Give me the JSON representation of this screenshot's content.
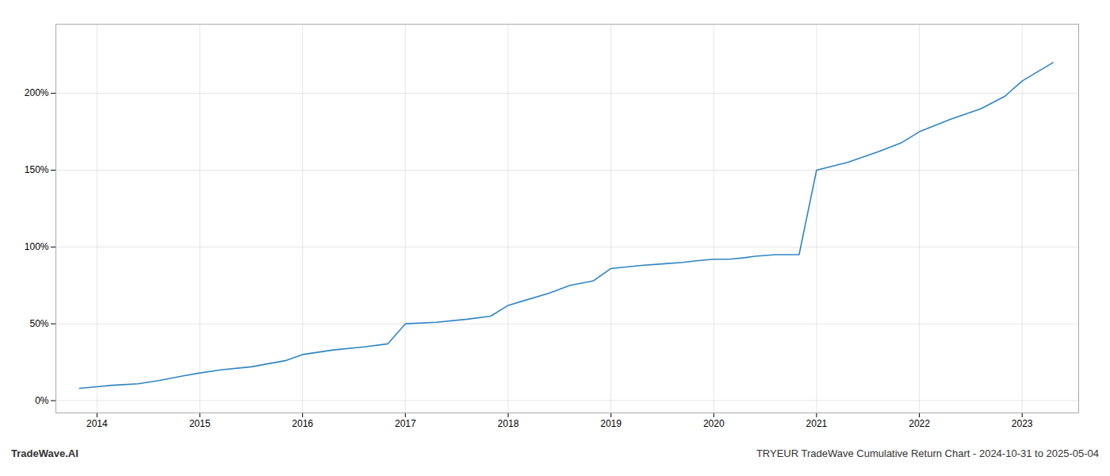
{
  "chart_data": {
    "type": "line",
    "x": [
      2013.83,
      2014.0,
      2014.15,
      2014.4,
      2014.6,
      2014.83,
      2015.0,
      2015.2,
      2015.5,
      2015.83,
      2016.0,
      2016.3,
      2016.6,
      2016.83,
      2017.0,
      2017.3,
      2017.6,
      2017.83,
      2018.0,
      2018.15,
      2018.4,
      2018.6,
      2018.83,
      2019.0,
      2019.3,
      2019.5,
      2019.7,
      2019.83,
      2020.0,
      2020.15,
      2020.3,
      2020.4,
      2020.6,
      2020.83,
      2021.0,
      2021.3,
      2021.6,
      2021.83,
      2022.0,
      2022.3,
      2022.6,
      2022.83,
      2023.0,
      2023.3
    ],
    "values": [
      8,
      9,
      10,
      11,
      13,
      16,
      18,
      20,
      22,
      26,
      30,
      33,
      35,
      37,
      50,
      51,
      53,
      55,
      62,
      65,
      70,
      75,
      78,
      86,
      88,
      89,
      90,
      91,
      92,
      92,
      93,
      94,
      95,
      95,
      150,
      155,
      162,
      168,
      175,
      183,
      190,
      198,
      208,
      220
    ],
    "color": "#2e86c1",
    "xlim": [
      2013.6,
      2023.55
    ],
    "xticks": [
      2014,
      2015,
      2016,
      2017,
      2018,
      2019,
      2020,
      2021,
      2022,
      2023
    ],
    "ylim": [
      -8,
      245
    ],
    "yticks": [
      {
        "value": 0,
        "label": "0%"
      },
      {
        "value": 50,
        "label": "50%"
      },
      {
        "value": 100,
        "label": "100%"
      },
      {
        "value": 150,
        "label": "150%"
      },
      {
        "value": 200,
        "label": "200%"
      }
    ],
    "grid": true,
    "annotations": [
      "TradeWave.AI",
      "TRYEUR TradeWave Cumulative Return Chart - 2024-10-31 to 2025-05-04"
    ]
  }
}
